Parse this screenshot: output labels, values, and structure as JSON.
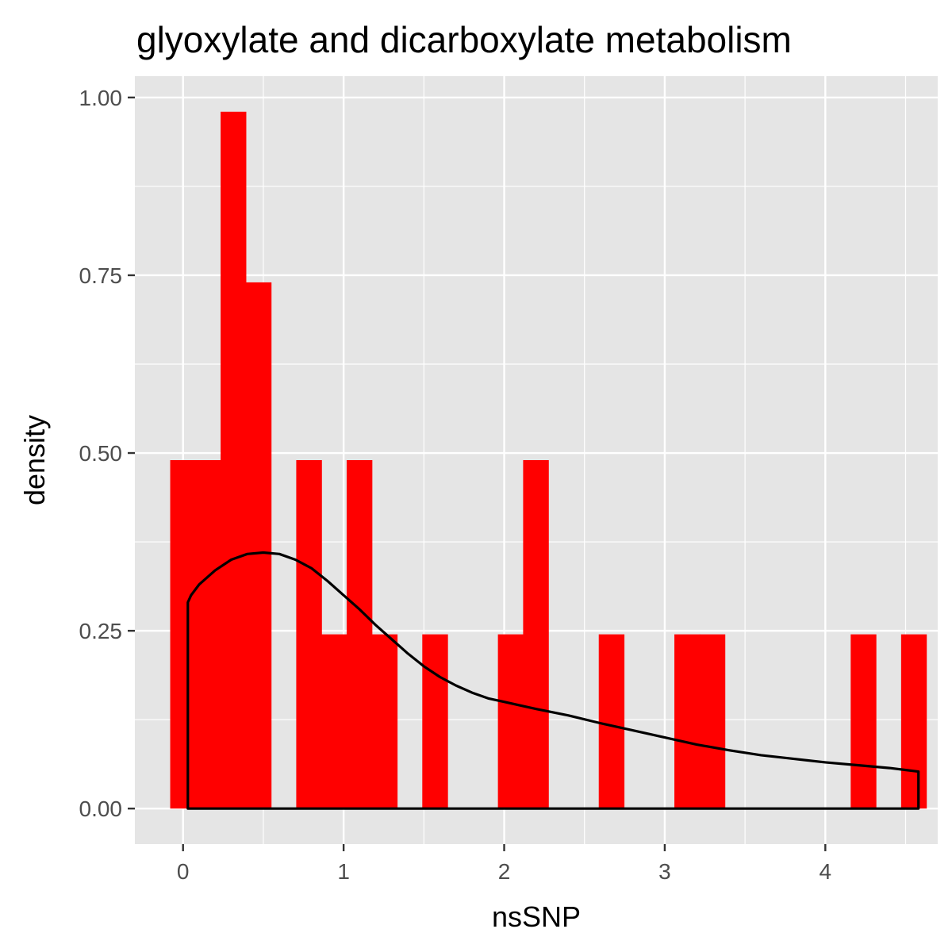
{
  "chart_data": {
    "type": "bar",
    "title": "glyoxylate and dicarboxylate metabolism",
    "xlabel": "nsSNP",
    "ylabel": "density",
    "xlim": [
      -0.3,
      4.7
    ],
    "ylim": [
      -0.05,
      1.03
    ],
    "x_ticks": [
      0,
      1,
      2,
      3,
      4
    ],
    "x_tick_labels": [
      "0",
      "1",
      "2",
      "3",
      "4"
    ],
    "y_ticks": [
      0,
      0.25,
      0.5,
      0.75,
      1.0
    ],
    "y_tick_labels": [
      "0.00",
      "0.25",
      "0.50",
      "0.75",
      "1.00"
    ],
    "grid": true,
    "panel_background": "#e5e5e5",
    "bar_color": "#ff0000",
    "curve_color": "#000000",
    "histogram": {
      "bin_width": 0.157,
      "bins": [
        {
          "x_start": -0.08,
          "x_end": 0.077,
          "density": 0.49
        },
        {
          "x_start": 0.077,
          "x_end": 0.234,
          "density": 0.49
        },
        {
          "x_start": 0.234,
          "x_end": 0.391,
          "density": 0.98
        },
        {
          "x_start": 0.391,
          "x_end": 0.548,
          "density": 0.74
        },
        {
          "x_start": 0.705,
          "x_end": 0.862,
          "density": 0.49
        },
        {
          "x_start": 0.862,
          "x_end": 1.019,
          "density": 0.245
        },
        {
          "x_start": 1.019,
          "x_end": 1.176,
          "density": 0.49
        },
        {
          "x_start": 1.176,
          "x_end": 1.333,
          "density": 0.245
        },
        {
          "x_start": 1.49,
          "x_end": 1.647,
          "density": 0.245
        },
        {
          "x_start": 1.961,
          "x_end": 2.118,
          "density": 0.245
        },
        {
          "x_start": 2.118,
          "x_end": 2.275,
          "density": 0.49
        },
        {
          "x_start": 2.589,
          "x_end": 2.746,
          "density": 0.245
        },
        {
          "x_start": 3.06,
          "x_end": 3.217,
          "density": 0.245
        },
        {
          "x_start": 3.217,
          "x_end": 3.374,
          "density": 0.245
        },
        {
          "x_start": 4.158,
          "x_end": 4.315,
          "density": 0.245
        },
        {
          "x_start": 4.472,
          "x_end": 4.629,
          "density": 0.245
        }
      ]
    },
    "density_curve": {
      "x": [
        0.03,
        0.05,
        0.1,
        0.2,
        0.3,
        0.4,
        0.5,
        0.6,
        0.7,
        0.8,
        0.9,
        1.0,
        1.1,
        1.2,
        1.3,
        1.4,
        1.5,
        1.6,
        1.7,
        1.8,
        1.9,
        2.0,
        2.2,
        2.4,
        2.6,
        2.8,
        3.0,
        3.2,
        3.4,
        3.6,
        3.8,
        4.0,
        4.2,
        4.4,
        4.58
      ],
      "y": [
        0.29,
        0.3,
        0.315,
        0.335,
        0.35,
        0.358,
        0.36,
        0.358,
        0.35,
        0.338,
        0.32,
        0.3,
        0.28,
        0.258,
        0.238,
        0.218,
        0.2,
        0.185,
        0.173,
        0.163,
        0.155,
        0.15,
        0.14,
        0.131,
        0.12,
        0.11,
        0.1,
        0.09,
        0.082,
        0.075,
        0.07,
        0.065,
        0.061,
        0.057,
        0.052
      ]
    }
  }
}
